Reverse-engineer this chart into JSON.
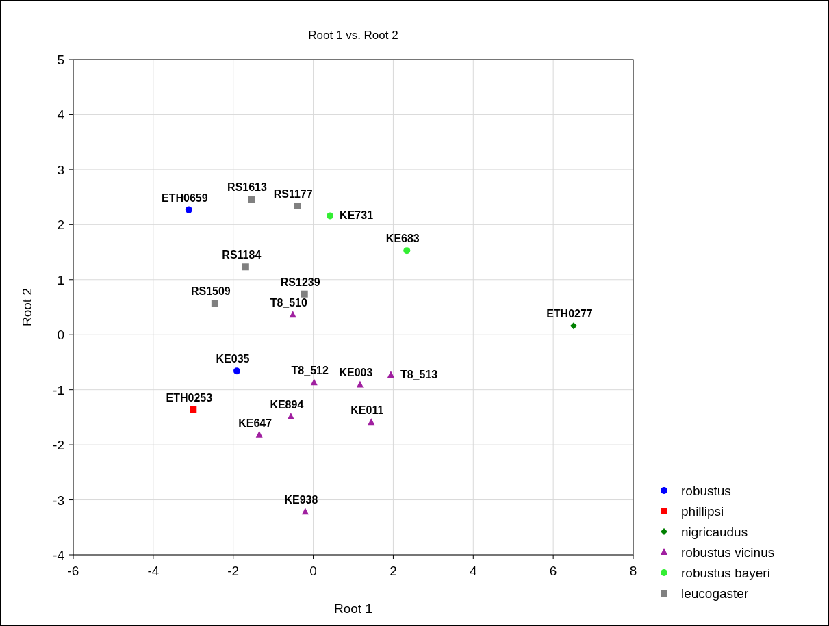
{
  "chart_data": {
    "type": "scatter",
    "title": "Root 1 vs. Root 2",
    "xlabel": "Root 1",
    "ylabel": "Root 2",
    "xlim": [
      -6,
      8
    ],
    "xticks": [
      -6,
      -4,
      -2,
      0,
      2,
      4,
      6,
      8
    ],
    "ylim": [
      -4,
      5
    ],
    "yticks": [
      -4,
      -3,
      -2,
      -1,
      0,
      1,
      2,
      3,
      4,
      5
    ],
    "grid": true,
    "legend": "bottom right",
    "series": [
      {
        "name": "robustus",
        "color": "#0000ff",
        "marker": "circle",
        "x": [
          -3.11,
          -1.91
        ],
        "values": [
          2.27,
          -0.66
        ]
      },
      {
        "name": "phillipsi",
        "color": "#ff0000",
        "marker": "square",
        "x": [
          -3.0
        ],
        "values": [
          -1.36
        ]
      },
      {
        "name": "nigricaudus",
        "color": "#008000",
        "marker": "diamond",
        "x": [
          6.51
        ],
        "values": [
          0.16
        ]
      },
      {
        "name": "robustus vicinus",
        "color": "#a020a0",
        "marker": "triangle",
        "x": [
          -0.51,
          0.02,
          1.17,
          1.94,
          -0.56,
          1.45,
          -1.35,
          -0.2
        ],
        "values": [
          0.36,
          -0.87,
          -0.91,
          -0.73,
          -1.49,
          -1.59,
          -1.82,
          -3.22
        ]
      },
      {
        "name": "robustus bayeri",
        "color": "#33ee33",
        "marker": "circle",
        "x": [
          0.42,
          2.34
        ],
        "values": [
          2.16,
          1.53
        ]
      },
      {
        "name": "leucogaster",
        "color": "#808080",
        "marker": "square",
        "x": [
          -1.55,
          -0.4,
          -1.69,
          -0.22,
          -2.46
        ],
        "values": [
          2.46,
          2.34,
          1.23,
          0.74,
          0.57
        ]
      }
    ],
    "annotations": [
      {
        "text": "ETH0659",
        "x": -3.11,
        "y": 2.27
      },
      {
        "text": "KE035",
        "x": -1.91,
        "y": -0.66
      },
      {
        "text": "ETH0253",
        "x": -3.0,
        "y": -1.36
      },
      {
        "text": "ETH0277",
        "x": 6.51,
        "y": 0.16
      },
      {
        "text": "RS1613",
        "x": -1.55,
        "y": 2.46
      },
      {
        "text": "RS1177",
        "x": -0.4,
        "y": 2.34
      },
      {
        "text": "KE731",
        "x": 0.42,
        "y": 2.16
      },
      {
        "text": "KE683",
        "x": 2.34,
        "y": 1.53
      },
      {
        "text": "RS1184",
        "x": -1.69,
        "y": 1.23
      },
      {
        "text": "RS1239",
        "x": -0.22,
        "y": 0.74
      },
      {
        "text": "RS1509",
        "x": -2.46,
        "y": 0.57
      },
      {
        "text": "T8_510",
        "x": -0.51,
        "y": 0.36
      },
      {
        "text": "T8_512",
        "x": 0.02,
        "y": -0.87
      },
      {
        "text": "KE003",
        "x": 1.17,
        "y": -0.91
      },
      {
        "text": "T8_513",
        "x": 1.94,
        "y": -0.73
      },
      {
        "text": "KE894",
        "x": -0.56,
        "y": -1.49
      },
      {
        "text": "KE011",
        "x": 1.45,
        "y": -1.59
      },
      {
        "text": "KE647",
        "x": -1.35,
        "y": -1.82
      },
      {
        "text": "KE938",
        "x": -0.2,
        "y": -3.22
      }
    ]
  }
}
